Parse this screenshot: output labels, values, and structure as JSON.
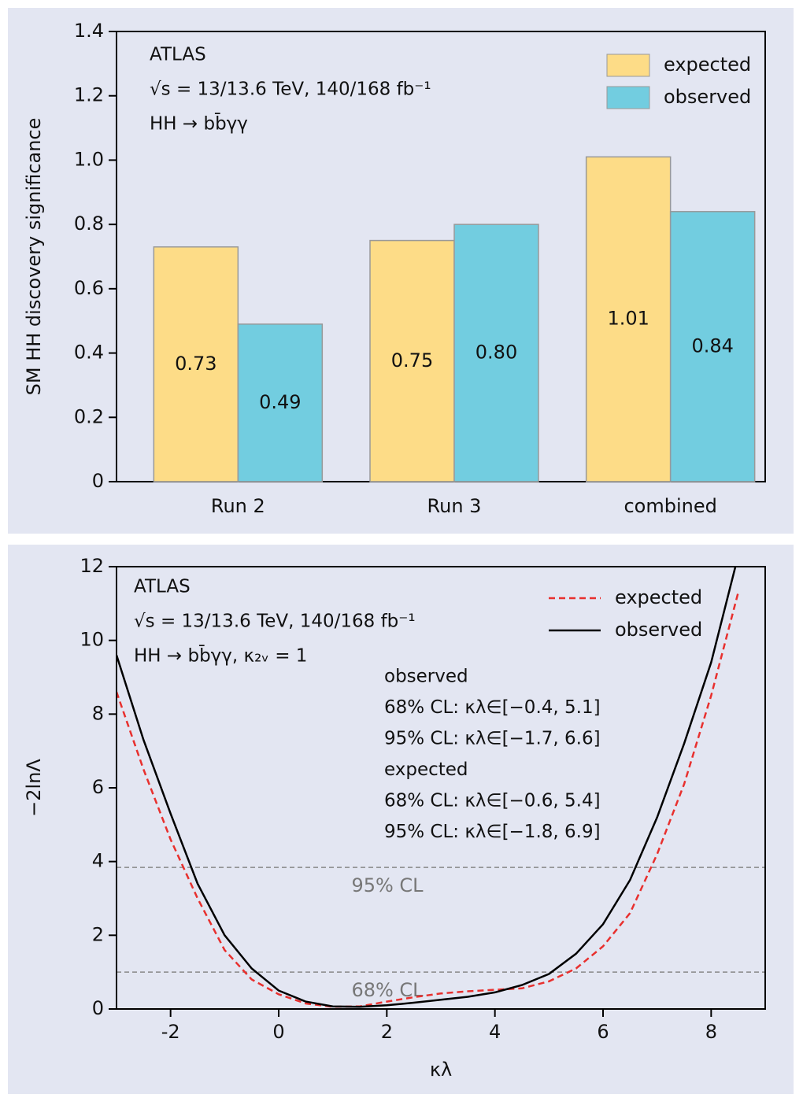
{
  "chart_data": [
    {
      "type": "bar",
      "categories": [
        "Run 2",
        "Run 3",
        "combined"
      ],
      "series": [
        {
          "name": "expected",
          "color": "#fddc87",
          "values": [
            0.73,
            0.75,
            1.01
          ],
          "value_labels": [
            "0.73",
            "0.75",
            "1.01"
          ]
        },
        {
          "name": "observed",
          "color": "#72cde0",
          "values": [
            0.49,
            0.8,
            0.84
          ],
          "value_labels": [
            "0.49",
            "0.80",
            "0.84"
          ]
        }
      ],
      "ylabel": "SM HH discovery significance",
      "ylim": [
        0,
        1.4
      ],
      "yticks": [
        0,
        0.2,
        0.4,
        0.6,
        0.8,
        {
          "value": 1,
          "label": "1.0"
        },
        1.2,
        1.4
      ],
      "annotations": [
        "ATLAS",
        "√s = 13/13.6 TeV, 140/168 fb⁻¹",
        "HH → bb̄γγ"
      ],
      "legend": "upper right"
    },
    {
      "type": "line",
      "x": [
        -3,
        -2.5,
        -2,
        -1.5,
        -1,
        -0.5,
        0,
        0.5,
        1,
        1.5,
        2,
        2.5,
        3,
        3.5,
        4,
        4.5,
        5,
        5.5,
        6,
        6.5,
        7,
        7.5,
        8,
        8.5,
        9
      ],
      "series": [
        {
          "name": "expected",
          "color": "#e8302e",
          "linestyle": "dashed",
          "values": [
            8.6,
            6.5,
            4.6,
            3.0,
            1.6,
            0.8,
            0.4,
            0.15,
            0.06,
            0.07,
            0.2,
            0.32,
            0.42,
            0.48,
            0.52,
            0.56,
            0.75,
            1.1,
            1.7,
            2.6,
            4.2,
            6.1,
            8.5,
            11.3,
            null
          ]
        },
        {
          "name": "observed",
          "color": "#000000",
          "linestyle": "solid",
          "values": [
            9.6,
            7.3,
            5.3,
            3.4,
            2.0,
            1.1,
            0.5,
            0.2,
            0.07,
            0.06,
            0.1,
            0.17,
            0.25,
            0.33,
            0.45,
            0.65,
            0.95,
            1.5,
            2.3,
            3.5,
            5.2,
            7.2,
            9.4,
            12.3,
            null
          ]
        }
      ],
      "xlabel": "κλ",
      "ylabel": "−2lnΛ",
      "xlim": [
        -3,
        9
      ],
      "ylim": [
        0,
        12
      ],
      "xticks": [
        -2,
        0,
        2,
        4,
        6,
        8
      ],
      "yticks": [
        0,
        2,
        4,
        6,
        8,
        10,
        12
      ],
      "hlines": [
        {
          "value": 3.84,
          "label": "95% CL"
        },
        {
          "value": 1,
          "label": "68% CL"
        }
      ],
      "annotations": [
        "ATLAS",
        "√s = 13/13.6 TeV, 140/168 fb⁻¹",
        "HH → bb̄γγ, κ₂ᵥ = 1"
      ],
      "intervals": [
        "observed",
        "68% CL: κλ∈[−0.4, 5.1]",
        "95% CL: κλ∈[−1.7, 6.6]",
        "expected",
        "68% CL: κλ∈[−0.6, 5.4]",
        "95% CL: κλ∈[−1.8, 6.9]"
      ],
      "legend": "upper right"
    }
  ]
}
